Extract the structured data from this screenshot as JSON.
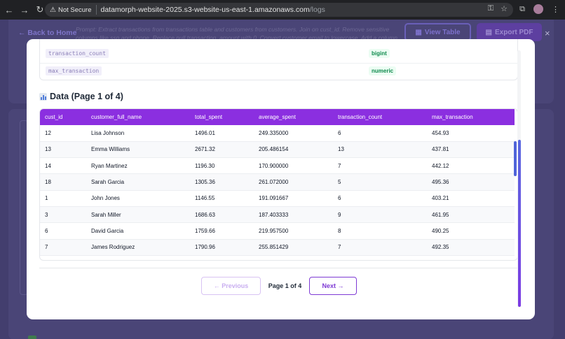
{
  "browser": {
    "security_label": "Not Secure",
    "url_host": "datamorph-website-2025.s3-website-us-east-1.amazonaws.com",
    "url_path": "/logs"
  },
  "background": {
    "back_label": "← Back to Home",
    "prompt_text": "Prompt: Extract transactions from transactions table and customers from customers. Join on cust_id. Remove sensitive columns like ssn and phone. Replace null transaction_amount with 0. Convert customer email to lowercase. Add a column",
    "view_table_label": "View Table",
    "export_pdf_label": "Export PDF",
    "close_label": "×"
  },
  "schema": {
    "rows": [
      {
        "column": "transaction_count",
        "type": "bigint"
      },
      {
        "column": "max_transaction",
        "type": "numeric"
      }
    ]
  },
  "section": {
    "title": "Data (Page 1 of 4)"
  },
  "table": {
    "headers": [
      "cust_id",
      "customer_full_name",
      "total_spent",
      "average_spent",
      "transaction_count",
      "max_transaction"
    ],
    "rows": [
      [
        "12",
        "Lisa Johnson",
        "1496.01",
        "249.335000",
        "6",
        "454.93"
      ],
      [
        "13",
        "Emma Williams",
        "2671.32",
        "205.486154",
        "13",
        "437.81"
      ],
      [
        "14",
        "Ryan Martinez",
        "1196.30",
        "170.900000",
        "7",
        "442.12"
      ],
      [
        "18",
        "Sarah Garcia",
        "1305.36",
        "261.072000",
        "5",
        "495.36"
      ],
      [
        "1",
        "John Jones",
        "1146.55",
        "191.091667",
        "6",
        "403.21"
      ],
      [
        "3",
        "Sarah Miller",
        "1686.63",
        "187.403333",
        "9",
        "461.95"
      ],
      [
        "6",
        "David Garcia",
        "1759.66",
        "219.957500",
        "8",
        "490.25"
      ],
      [
        "7",
        "James Rodriguez",
        "1790.96",
        "255.851429",
        "7",
        "492.35"
      ]
    ]
  },
  "pagination": {
    "previous_label": "← Previous",
    "page_info": "Page 1 of 4",
    "next_label": "Next →"
  }
}
